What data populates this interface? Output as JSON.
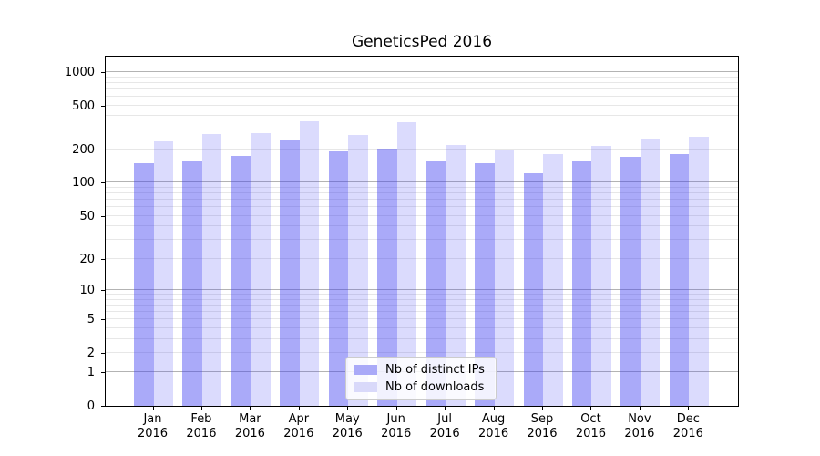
{
  "chart_data": {
    "type": "bar",
    "title": "GeneticsPed 2016",
    "x_categories": [
      "Jan 2016",
      "Feb 2016",
      "Mar 2016",
      "Apr 2016",
      "May 2016",
      "Jun 2016",
      "Jul 2016",
      "Aug 2016",
      "Sep 2016",
      "Oct 2016",
      "Nov 2016",
      "Dec 2016"
    ],
    "x_tick_line1": [
      "Jan",
      "Feb",
      "Mar",
      "Apr",
      "May",
      "Jun",
      "Jul",
      "Aug",
      "Sep",
      "Oct",
      "Nov",
      "Dec"
    ],
    "x_tick_line2": [
      "2016",
      "2016",
      "2016",
      "2016",
      "2016",
      "2016",
      "2016",
      "2016",
      "2016",
      "2016",
      "2016",
      "2016"
    ],
    "series": [
      {
        "name": "Nb of distinct IPs",
        "fill": "rgba(62,62,242,0.44)",
        "solid_color_over_white": "#aaaaf8",
        "values": [
          150,
          157,
          175,
          248,
          193,
          205,
          160,
          152,
          122,
          159,
          173,
          181
        ]
      },
      {
        "name": "Nb of downloads",
        "fill": "rgba(62,62,242,0.19)",
        "solid_color_over_white": "#d9d9fa",
        "values": [
          239,
          278,
          281,
          358,
          269,
          351,
          220,
          195,
          183,
          216,
          251,
          261
        ]
      }
    ],
    "y_scale": "log10(value+1)",
    "y_ticks": [
      0,
      1,
      2,
      5,
      10,
      20,
      50,
      100,
      200,
      500,
      1000
    ],
    "y_major_gridlines": [
      1,
      10,
      100,
      1000
    ],
    "ylim_top_approx": 1400,
    "grid": true,
    "legend_position": "lower-center",
    "colors": {
      "major_grid": "#b3b3b3",
      "minor_grid": "#e7e7e7",
      "axis": "#000000",
      "background": "#ffffff"
    }
  }
}
